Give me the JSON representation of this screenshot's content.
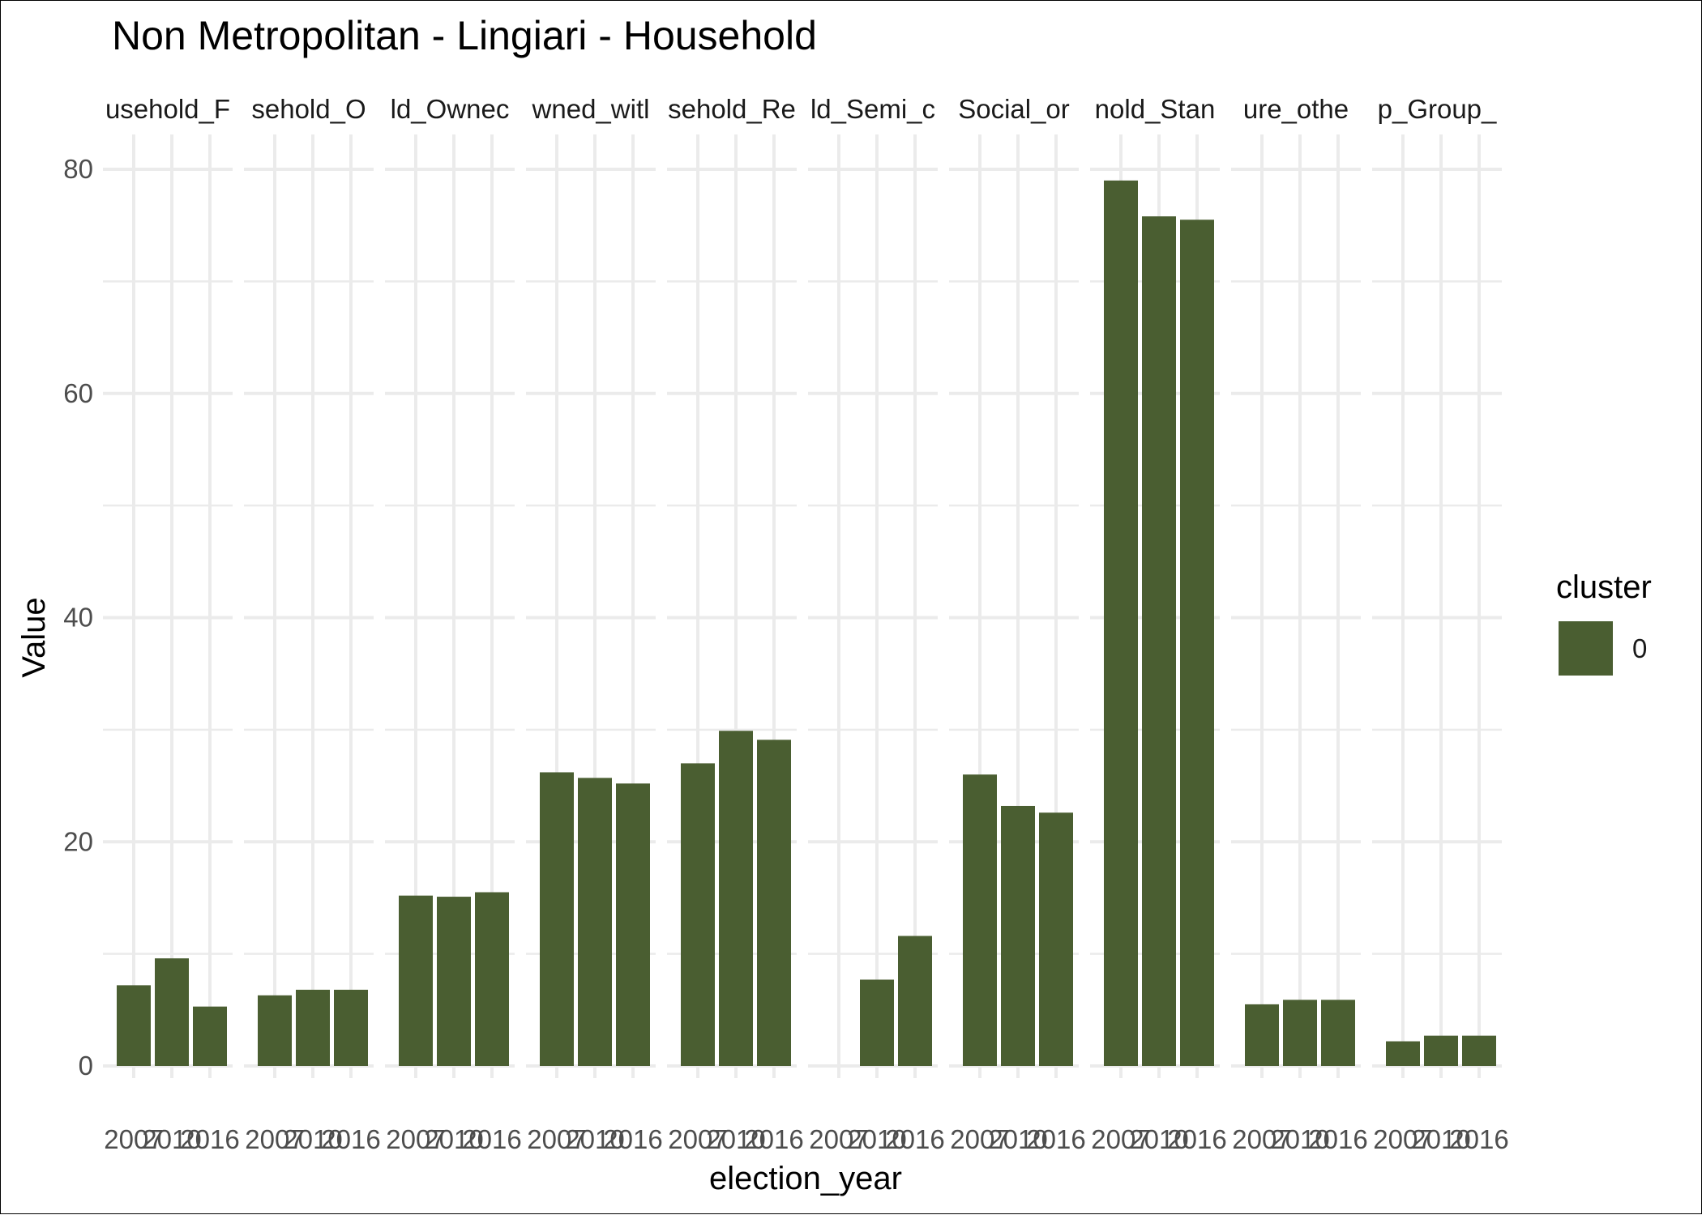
{
  "chart_data": {
    "type": "bar",
    "title": "Non Metropolitan - Lingiari - Household",
    "xlabel": "election_year",
    "ylabel": "Value",
    "ylim": [
      0,
      83
    ],
    "yticks": [
      0,
      20,
      40,
      60,
      80
    ],
    "x": [
      "2007",
      "2010",
      "2016"
    ],
    "panels": [
      {
        "label": "usehold_F",
        "values": [
          7.2,
          9.6,
          5.3
        ]
      },
      {
        "label": "sehold_O",
        "values": [
          6.3,
          6.8,
          6.8
        ]
      },
      {
        "label": "ld_Ownec",
        "values": [
          15.2,
          15.1,
          15.5
        ]
      },
      {
        "label": "wned_witl",
        "values": [
          26.2,
          25.7,
          25.2
        ]
      },
      {
        "label": "sehold_Re",
        "values": [
          27.0,
          29.9,
          29.1
        ]
      },
      {
        "label": "ld_Semi_c",
        "values": [
          null,
          7.7,
          11.6
        ]
      },
      {
        "label": "Social_or",
        "values": [
          26.0,
          23.2,
          22.6
        ]
      },
      {
        "label": "nold_Stan",
        "values": [
          79.0,
          75.8,
          75.5
        ]
      },
      {
        "label": "ure_othe",
        "values": [
          5.5,
          5.9,
          5.9
        ]
      },
      {
        "label": "p_Group_",
        "values": [
          2.2,
          2.7,
          2.7
        ]
      }
    ],
    "legend": {
      "title": "cluster",
      "entries": [
        {
          "label": "0",
          "color": "#4a5e31"
        }
      ],
      "position": "right"
    },
    "bar_color": "#4a5e31",
    "grid": true
  }
}
